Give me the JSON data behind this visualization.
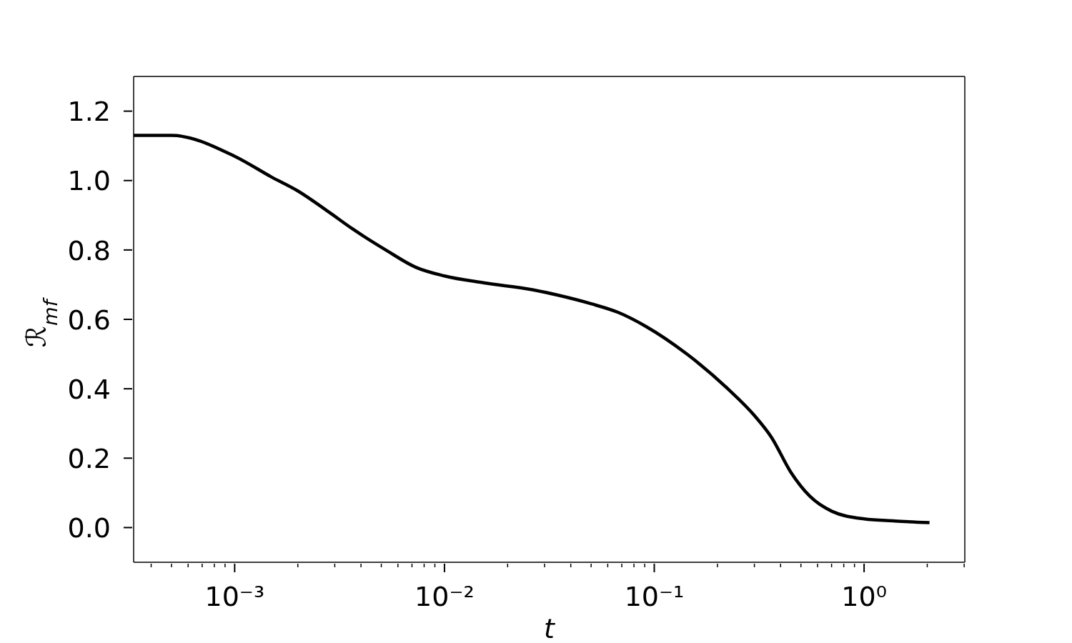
{
  "chart_data": {
    "type": "line",
    "xlabel": "t",
    "ylabel": "ℛ$_{mf}$",
    "log": "x",
    "color": "#000000",
    "x": [
      0.00033,
      0.0005,
      0.001,
      0.0015,
      0.002,
      0.0028,
      0.00366,
      0.00525,
      0.0073,
      0.01,
      0.0155,
      0.0265,
      0.0346,
      0.05,
      0.0673,
      0.091,
      0.143,
      0.224,
      0.303,
      0.362,
      0.447,
      0.552,
      0.702,
      1.0,
      1.4,
      2.05
    ],
    "values": [
      1.13,
      1.13,
      1.07,
      1.01,
      0.97,
      0.91,
      0.86,
      0.8,
      0.75,
      0.725,
      0.705,
      0.685,
      0.67,
      0.645,
      0.62,
      0.58,
      0.5,
      0.4,
      0.32,
      0.26,
      0.16,
      0.09,
      0.047,
      0.025,
      0.019,
      0.014
    ],
    "xlim": [
      0.00033,
      3.02
    ],
    "ylim": [
      -0.1,
      1.3
    ],
    "xticks": [
      {
        "value": 0.0004,
        "label": null
      },
      {
        "value": 0.0005,
        "label": null
      },
      {
        "value": 0.0006,
        "label": null
      },
      {
        "value": 0.0007,
        "label": null
      },
      {
        "value": 0.0008,
        "label": null
      },
      {
        "value": 0.0009,
        "label": null
      },
      {
        "value": 0.001,
        "label": "10⁻³"
      },
      {
        "value": 0.002,
        "label": null
      },
      {
        "value": 0.003,
        "label": null
      },
      {
        "value": 0.004,
        "label": null
      },
      {
        "value": 0.005,
        "label": null
      },
      {
        "value": 0.006,
        "label": null
      },
      {
        "value": 0.007,
        "label": null
      },
      {
        "value": 0.008,
        "label": null
      },
      {
        "value": 0.009,
        "label": null
      },
      {
        "value": 0.01,
        "label": "10⁻²"
      },
      {
        "value": 0.02,
        "label": null
      },
      {
        "value": 0.03,
        "label": null
      },
      {
        "value": 0.04,
        "label": null
      },
      {
        "value": 0.05,
        "label": null
      },
      {
        "value": 0.06,
        "label": null
      },
      {
        "value": 0.07,
        "label": null
      },
      {
        "value": 0.08,
        "label": null
      },
      {
        "value": 0.09,
        "label": null
      },
      {
        "value": 0.1,
        "label": "10⁻¹"
      },
      {
        "value": 0.2,
        "label": null
      },
      {
        "value": 0.3,
        "label": null
      },
      {
        "value": 0.4,
        "label": null
      },
      {
        "value": 0.5,
        "label": null
      },
      {
        "value": 0.6,
        "label": null
      },
      {
        "value": 0.7,
        "label": null
      },
      {
        "value": 0.8,
        "label": null
      },
      {
        "value": 0.9,
        "label": null
      },
      {
        "value": 1,
        "label": "10⁰"
      },
      {
        "value": 2,
        "label": null
      },
      {
        "value": 3,
        "label": null
      }
    ],
    "yticks": [
      {
        "value": 0,
        "label": "0.0"
      },
      0.2,
      0.4,
      0.6,
      0.8,
      {
        "value": 1,
        "label": "1.0"
      },
      1.2
    ]
  }
}
